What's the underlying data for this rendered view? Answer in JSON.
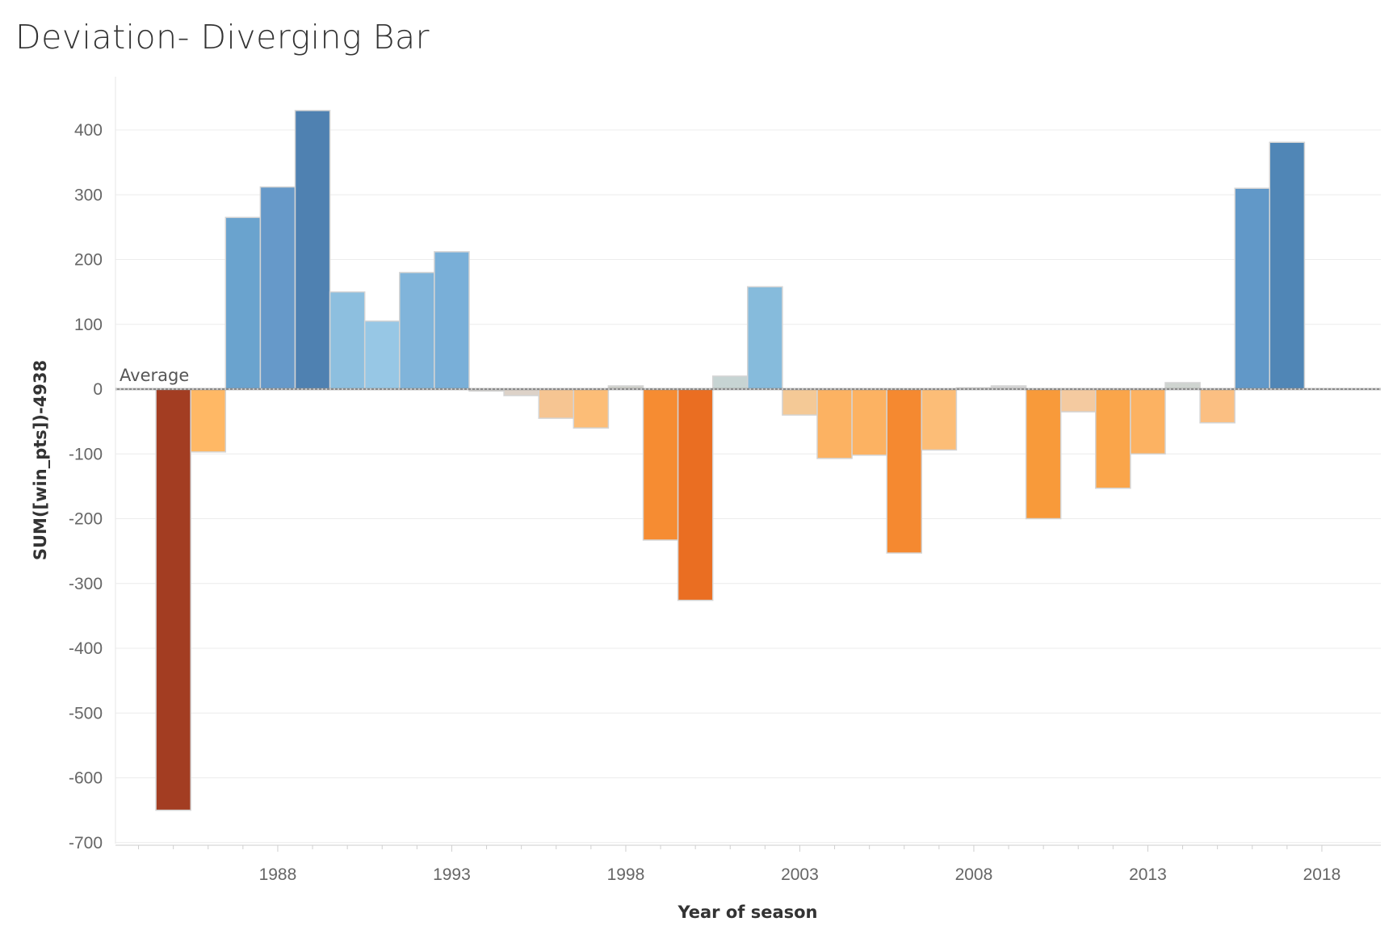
{
  "chart_data": {
    "type": "bar",
    "title": "Deviation- Diverging Bar",
    "xlabel": "Year of season",
    "ylabel": "SUM([win_pts])-4938",
    "reference_line": {
      "label": "Average",
      "value": 0
    },
    "ylim": [
      -720,
      440
    ],
    "y_ticks": [
      400,
      300,
      200,
      100,
      0,
      -100,
      -200,
      -300,
      -400,
      -500,
      -600,
      -700
    ],
    "x_ticks": [
      1988,
      1993,
      1998,
      2003,
      2008,
      2013,
      2018
    ],
    "x": [
      1984,
      1985,
      1986,
      1987,
      1988,
      1989,
      1990,
      1991,
      1992,
      1993,
      1994,
      1995,
      1996,
      1997,
      1998,
      1999,
      2000,
      2001,
      2002,
      2003,
      2004,
      2005,
      2006,
      2007,
      2008,
      2009,
      2010,
      2011,
      2012,
      2013,
      2014,
      2015,
      2016,
      2017,
      2018
    ],
    "values": [
      null,
      -650,
      -97,
      265,
      312,
      430,
      150,
      105,
      180,
      212,
      -3,
      -10,
      -45,
      -60,
      5,
      -233,
      -326,
      20,
      158,
      -40,
      -107,
      -102,
      -253,
      -94,
      2,
      5,
      -200,
      -35,
      -153,
      -100,
      10,
      -52,
      310,
      381,
      null
    ],
    "colors": [
      "#ffffff",
      "#a33d22",
      "#ffb865",
      "#6aa3ce",
      "#6699c9",
      "#4f81b1",
      "#8dbfdf",
      "#97c7e5",
      "#80b4da",
      "#79afd8",
      "#d9d4cf",
      "#ddd2c8",
      "#f6c592",
      "#fcbd77",
      "#cfd0cb",
      "#f68c32",
      "#ea6e22",
      "#c7d4d3",
      "#86bbdc",
      "#f4c996",
      "#fcb262",
      "#fcb262",
      "#f58930",
      "#fcbd77",
      "#bdbdbd",
      "#d4d4d4",
      "#f89a3a",
      "#f4caa0",
      "#faa54a",
      "#fcb262",
      "#cfd4d0",
      "#fbbf82",
      "#6198c8",
      "#5086b6",
      "#ffffff"
    ]
  }
}
